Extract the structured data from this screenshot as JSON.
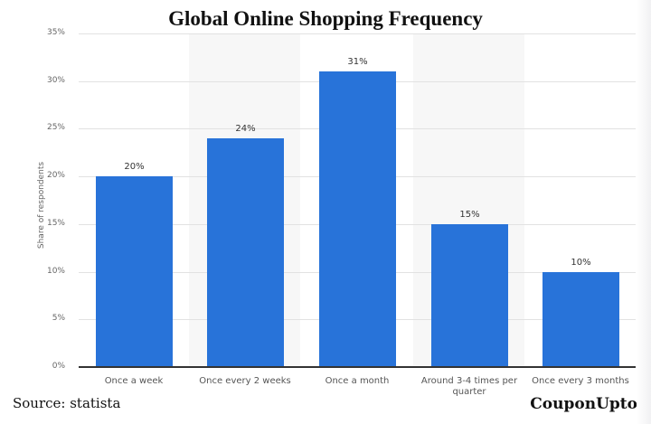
{
  "title": "Global Online Shopping Frequency",
  "source": "Source: statista",
  "brand": "CouponUpto",
  "colors": {
    "bar": "#2873d9",
    "band": "#f7f7f7",
    "grid": "#e2e2e2"
  },
  "chart_data": {
    "type": "bar",
    "title": "Global Online Shopping Frequency",
    "xlabel": "",
    "ylabel": "Share of respondents",
    "ylim": [
      0,
      35
    ],
    "yticks": [
      "0%",
      "5%",
      "10%",
      "15%",
      "20%",
      "25%",
      "30%",
      "35%"
    ],
    "grid": true,
    "legend": null,
    "categories": [
      "Once a week",
      "Once every 2 weeks",
      "Once a month",
      "Around 3-4 times per quarter",
      "Once every 3 months"
    ],
    "values": [
      20,
      24,
      31,
      15,
      10
    ],
    "value_labels": [
      "20%",
      "24%",
      "31%",
      "15%",
      "10%"
    ],
    "unit": "%"
  },
  "xlabels": [
    [
      "Once a week"
    ],
    [
      "Once every 2 weeks"
    ],
    [
      "Once a month"
    ],
    [
      "Around 3-4 times per",
      "quarter"
    ],
    [
      "Once every 3 months"
    ]
  ]
}
